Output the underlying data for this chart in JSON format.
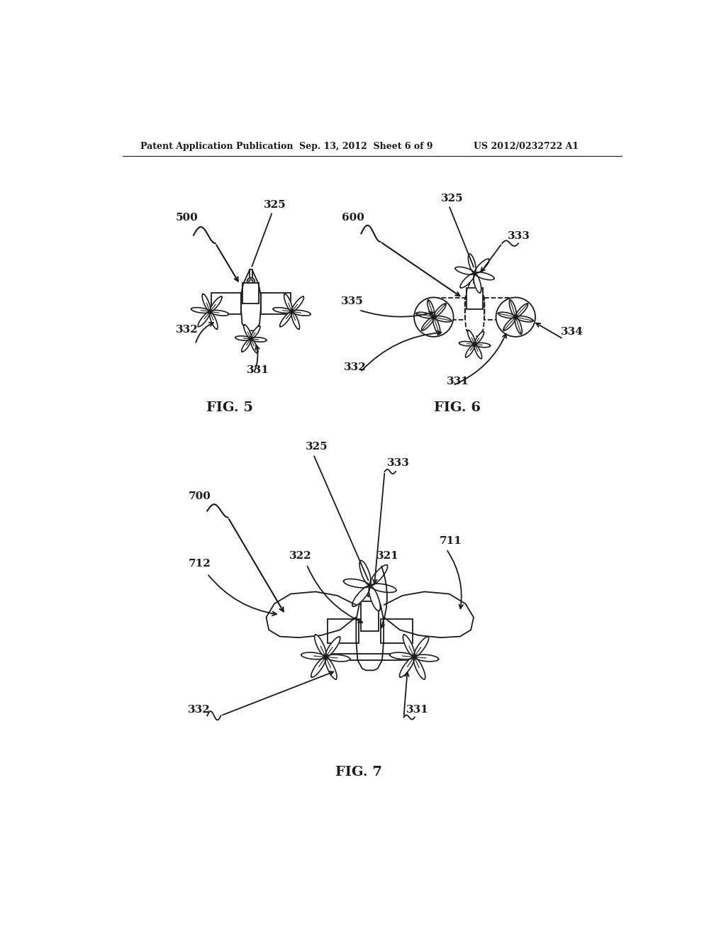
{
  "bg_color": "#ffffff",
  "line_color": "#1a1a1a",
  "header_text": "Patent Application Publication",
  "header_date": "Sep. 13, 2012  Sheet 6 of 9",
  "header_patent": "US 2012/0232722 A1"
}
